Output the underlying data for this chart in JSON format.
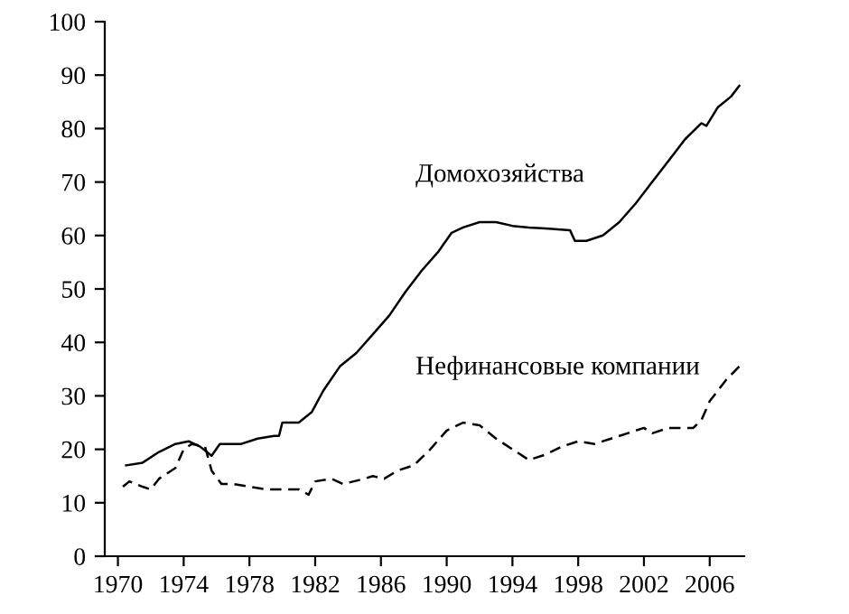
{
  "chart_data": {
    "type": "line",
    "xlim": [
      1969.2,
      2008.1
    ],
    "ylim": [
      0,
      100
    ],
    "xticks": [
      1970,
      1974,
      1978,
      1982,
      1986,
      1990,
      1994,
      1998,
      2002,
      2006
    ],
    "yticks": [
      0,
      10,
      20,
      30,
      40,
      50,
      60,
      70,
      80,
      90,
      100
    ],
    "grid": false,
    "legend": false,
    "marker": "none",
    "series": [
      {
        "name": "Домохозяйства",
        "color": "#000000",
        "line_style": "solid",
        "x": [
          1970.5,
          1971.5,
          1972.5,
          1973.5,
          1974.3,
          1975,
          1975.7,
          1976.2,
          1977.5,
          1978.5,
          1979.5,
          1979.8,
          1980,
          1981,
          1981.8,
          1982.5,
          1983.5,
          1984.5,
          1985.5,
          1986.5,
          1987.5,
          1988.5,
          1989.5,
          1990.3,
          1991,
          1992,
          1993,
          1994,
          1995,
          1996,
          1997.5,
          1997.8,
          1998.5,
          1999.5,
          2000.5,
          2001.5,
          2002.5,
          2003.5,
          2004.5,
          2005.5,
          2005.8,
          2006.5,
          2007.3,
          2007.8
        ],
        "values": [
          17,
          17.5,
          19.5,
          21,
          21.5,
          20.5,
          18.8,
          21,
          21,
          22,
          22.5,
          22.5,
          25,
          25,
          27,
          31,
          35.5,
          38,
          41.5,
          45,
          49.5,
          53.5,
          57,
          60.5,
          61.5,
          62.5,
          62.5,
          61.8,
          61.5,
          61.3,
          61,
          59,
          59,
          60,
          62.5,
          66,
          70,
          74,
          78,
          81,
          80.5,
          84,
          86,
          88
        ]
      },
      {
        "name": "Нефинансовые компании",
        "color": "#000000",
        "line_style": "dashed",
        "x": [
          1970.3,
          1970.7,
          1971.5,
          1972,
          1972.5,
          1973.5,
          1974,
          1974.5,
          1975.3,
          1975.7,
          1976.3,
          1977,
          1978,
          1979,
          1980,
          1981,
          1981.6,
          1982,
          1983,
          1983.7,
          1985,
          1985.5,
          1986.2,
          1987,
          1988,
          1989,
          1990,
          1991,
          1992,
          1993,
          1994,
          1995,
          1996,
          1997,
          1998,
          1999,
          2000,
          2001,
          2002,
          2002.5,
          2003.5,
          2005,
          2005.5,
          2006,
          2007,
          2007.8
        ],
        "values": [
          13,
          14,
          13,
          12.5,
          14.5,
          16.5,
          20,
          21,
          20.5,
          16,
          13.5,
          13.5,
          13,
          12.5,
          12.5,
          12.5,
          11.5,
          14,
          14.5,
          13.5,
          14.5,
          15,
          14.5,
          16,
          17,
          20,
          23.5,
          25,
          24.5,
          22,
          20,
          18,
          19,
          20.5,
          21.5,
          21,
          22,
          23,
          24,
          23,
          24,
          24,
          25.5,
          29,
          33,
          35.5
        ]
      }
    ]
  }
}
